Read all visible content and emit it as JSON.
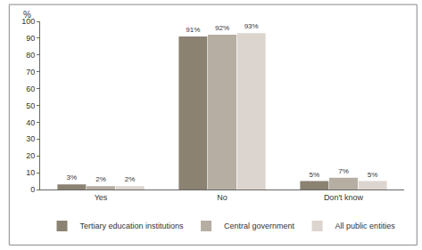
{
  "chart_data": {
    "type": "bar",
    "y_label": "%",
    "categories": [
      "Yes",
      "No",
      "Don't know"
    ],
    "series": [
      {
        "name": "Tertiary education institutions",
        "color": "#8b8272",
        "values": [
          3,
          91,
          5
        ],
        "value_labels": [
          "3%",
          "91%",
          "5%"
        ]
      },
      {
        "name": "Central government",
        "color": "#b6aea2",
        "values": [
          2,
          92,
          7
        ],
        "value_labels": [
          "2%",
          "92%",
          "7%"
        ]
      },
      {
        "name": "All public entities",
        "color": "#dcd5cf",
        "values": [
          2,
          93,
          5
        ],
        "value_labels": [
          "2%",
          "93%",
          "5%"
        ]
      }
    ],
    "ylim": [
      0,
      100
    ],
    "yticks": [
      0,
      10,
      20,
      30,
      40,
      50,
      60,
      70,
      80,
      90,
      100
    ],
    "grid": false,
    "legend": "bottom",
    "data_labels": true
  }
}
